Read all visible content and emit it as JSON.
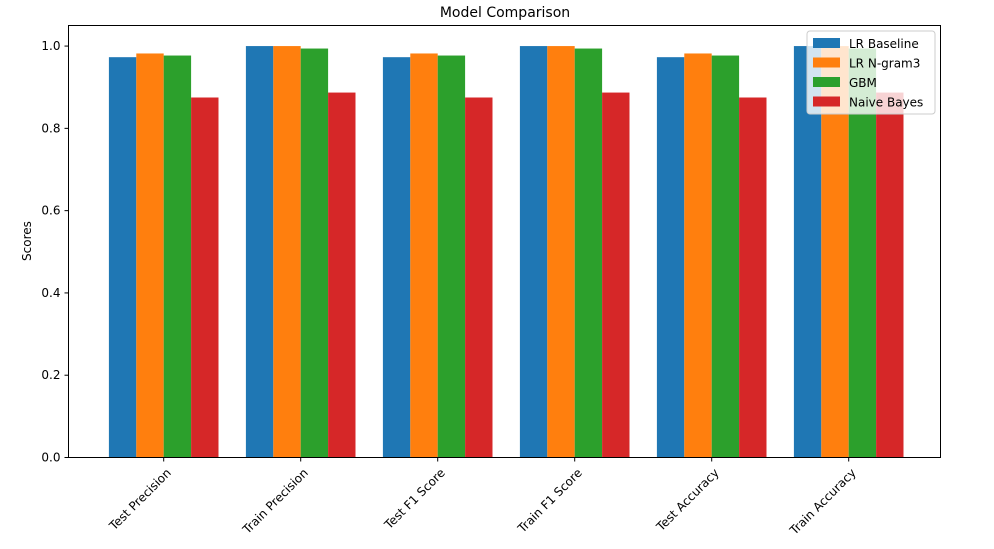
{
  "chart_data": {
    "type": "bar",
    "title": "Model Comparison",
    "xlabel": "",
    "ylabel": "Scores",
    "ylim": [
      0,
      1.05
    ],
    "yticks": [
      "0.0",
      "0.2",
      "0.4",
      "0.6",
      "0.8",
      "1.0"
    ],
    "grid": false,
    "legend_position": "top-right",
    "categories": [
      "Test Precision",
      "Train Precision",
      "Test F1 Score",
      "Train F1 Score",
      "Test Accuracy",
      "Train Accuracy"
    ],
    "series": [
      {
        "name": "LR Baseline",
        "color": "#1f77b4",
        "values": [
          0.973,
          1.0,
          0.973,
          1.0,
          0.973,
          1.0
        ]
      },
      {
        "name": "LR N-gram3",
        "color": "#ff7f0e",
        "values": [
          0.982,
          1.0,
          0.982,
          1.0,
          0.982,
          1.0
        ]
      },
      {
        "name": "GBM",
        "color": "#2ca02c",
        "values": [
          0.977,
          0.994,
          0.977,
          0.994,
          0.977,
          0.994
        ]
      },
      {
        "name": "Naive Bayes",
        "color": "#d62728",
        "values": [
          0.875,
          0.887,
          0.875,
          0.887,
          0.875,
          0.887
        ]
      }
    ]
  }
}
